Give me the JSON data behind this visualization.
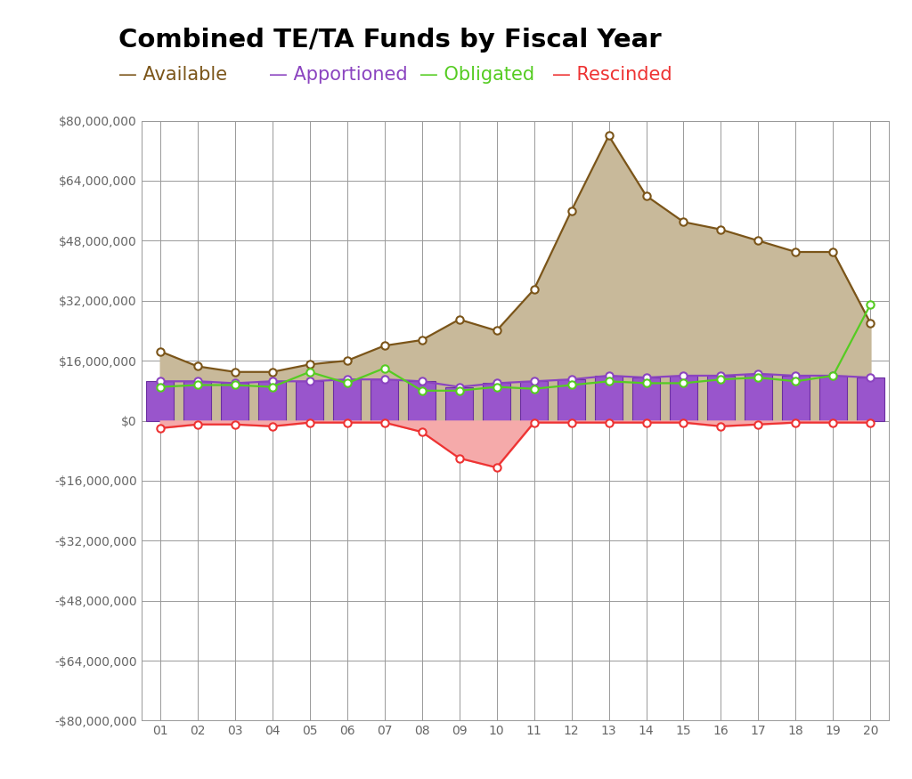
{
  "title": "Combined TE/TA Funds by Fiscal Year",
  "years": [
    1,
    2,
    3,
    4,
    5,
    6,
    7,
    8,
    9,
    10,
    11,
    12,
    13,
    14,
    15,
    16,
    17,
    18,
    19,
    20
  ],
  "year_labels": [
    "01",
    "02",
    "03",
    "04",
    "05",
    "06",
    "07",
    "08",
    "09",
    "10",
    "11",
    "12",
    "13",
    "14",
    "15",
    "16",
    "17",
    "18",
    "19",
    "20"
  ],
  "available": [
    18500000,
    14500000,
    13000000,
    13000000,
    15000000,
    16000000,
    20000000,
    21500000,
    27000000,
    24000000,
    35000000,
    56000000,
    76000000,
    60000000,
    53000000,
    51000000,
    48000000,
    45000000,
    45000000,
    26000000
  ],
  "apportioned": [
    10500000,
    10500000,
    10000000,
    10500000,
    10500000,
    11000000,
    11000000,
    10500000,
    9000000,
    10000000,
    10500000,
    11000000,
    12000000,
    11500000,
    12000000,
    12000000,
    12500000,
    12000000,
    12000000,
    11500000
  ],
  "obligated": [
    9000000,
    9500000,
    9500000,
    9000000,
    13000000,
    10000000,
    14000000,
    8000000,
    8000000,
    9000000,
    8500000,
    9500000,
    10500000,
    10000000,
    10000000,
    11000000,
    11500000,
    10500000,
    12000000,
    31000000
  ],
  "rescinded": [
    -2000000,
    -1000000,
    -1000000,
    -1500000,
    -500000,
    -500000,
    -500000,
    -3000000,
    -10000000,
    -12500000,
    -500000,
    -500000,
    -500000,
    -500000,
    -500000,
    -1500000,
    -1000000,
    -500000,
    -500000,
    -500000
  ],
  "available_color": "#7B5519",
  "available_fill": "#C8B99A",
  "apportioned_color": "#8B44C0",
  "apportioned_fill": "#9955CC",
  "apportioned_edge": "#6B2FA0",
  "obligated_color": "#55CC22",
  "rescinded_color": "#EE3333",
  "rescinded_fill": "#F5AAAA",
  "legend_available_color": "#7B5519",
  "legend_apportioned_color": "#8B44C0",
  "legend_obligated_color": "#55CC22",
  "legend_rescinded_color": "#EE3333",
  "ylim_min": -80000000,
  "ylim_max": 80000000,
  "ytick_values": [
    80000000,
    64000000,
    48000000,
    32000000,
    16000000,
    0,
    -16000000,
    -32000000,
    -48000000,
    -64000000,
    -80000000
  ],
  "bg_color": "#FFFFFF",
  "grid_color": "#999999",
  "title_fontsize": 21,
  "legend_fontsize": 15,
  "bar_width": 0.75
}
